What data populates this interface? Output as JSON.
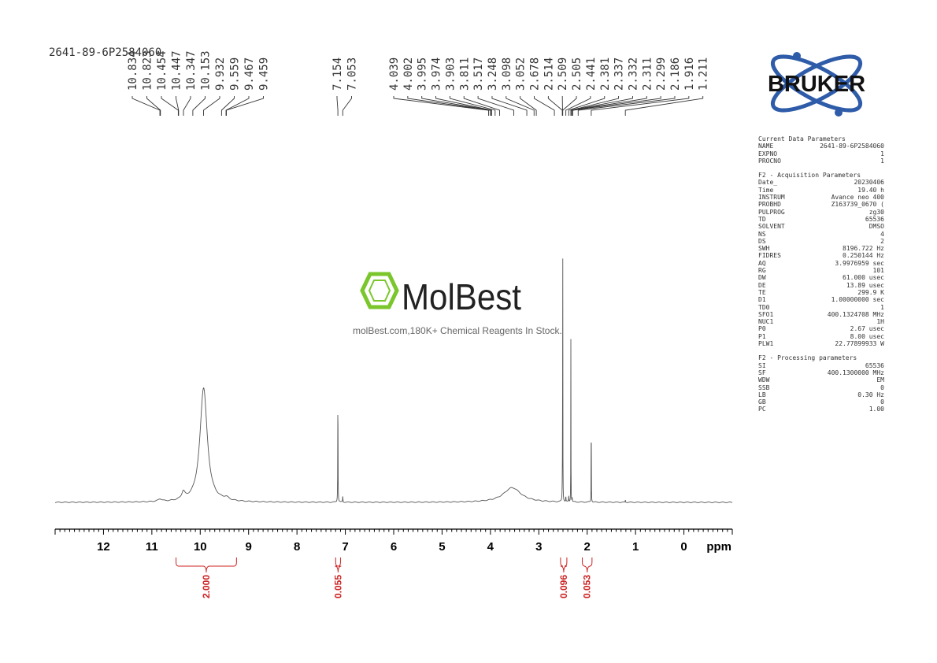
{
  "sample_title": "2641-89-6P2584060",
  "logo": {
    "brand": "BRUKER",
    "watermark_name": "MolBest",
    "watermark_caption": "molBest.com,180K+ Chemical Reagents In Stock."
  },
  "parameters": {
    "current": {
      "title": "Current Data Parameters",
      "rows": [
        {
          "k": "NAME",
          "v": "2641-89-6P2584060"
        },
        {
          "k": "EXPNO",
          "v": "1"
        },
        {
          "k": "PROCNO",
          "v": "1"
        }
      ]
    },
    "acquisition": {
      "title": "F2 - Acquisition Parameters",
      "rows": [
        {
          "k": "Date_",
          "v": "20230406"
        },
        {
          "k": "Time",
          "v": "19.40 h"
        },
        {
          "k": "INSTRUM",
          "v": "Avance neo 400"
        },
        {
          "k": "PROBHD",
          "v": "Z163739_0670 ("
        },
        {
          "k": "PULPROG",
          "v": "zg30"
        },
        {
          "k": "TD",
          "v": "65536"
        },
        {
          "k": "SOLVENT",
          "v": "DMSO"
        },
        {
          "k": "NS",
          "v": "4"
        },
        {
          "k": "DS",
          "v": "2"
        },
        {
          "k": "SWH",
          "v": "8196.722 Hz"
        },
        {
          "k": "FIDRES",
          "v": "0.250144 Hz"
        },
        {
          "k": "AQ",
          "v": "3.9976959 sec"
        },
        {
          "k": "RG",
          "v": "101"
        },
        {
          "k": "DW",
          "v": "61.000 usec"
        },
        {
          "k": "DE",
          "v": "13.89 usec"
        },
        {
          "k": "TE",
          "v": "299.9 K"
        },
        {
          "k": "D1",
          "v": "1.00000000 sec"
        },
        {
          "k": "TD0",
          "v": "1"
        },
        {
          "k": "SFO1",
          "v": "400.1324708 MHz"
        },
        {
          "k": "NUC1",
          "v": "1H"
        },
        {
          "k": "P0",
          "v": "2.67 usec"
        },
        {
          "k": "P1",
          "v": "8.00 usec"
        },
        {
          "k": "PLW1",
          "v": "22.77899933 W"
        }
      ]
    },
    "processing": {
      "title": "F2 - Processing parameters",
      "rows": [
        {
          "k": "SI",
          "v": "65536"
        },
        {
          "k": "SF",
          "v": "400.1300000 MHz"
        },
        {
          "k": "WDW",
          "v": "EM"
        },
        {
          "k": "SSB",
          "v": "0"
        },
        {
          "k": "LB",
          "v": "0.30 Hz"
        },
        {
          "k": "GB",
          "v": "0"
        },
        {
          "k": "PC",
          "v": "1.00"
        }
      ]
    }
  },
  "chart_data": {
    "type": "line",
    "xlabel": "ppm",
    "xlim": [
      13,
      -1
    ],
    "reversed_x": true,
    "x_ticks": [
      12,
      11,
      10,
      9,
      8,
      7,
      6,
      5,
      4,
      3,
      2,
      1,
      0
    ],
    "peaks": [
      {
        "ppm": 10.83,
        "height": 0.02,
        "width": 0.05
      },
      {
        "ppm": 10.35,
        "height": 0.06,
        "width": 0.04
      },
      {
        "ppm": 9.93,
        "height": 0.94,
        "width": 0.09
      },
      {
        "ppm": 9.46,
        "height": 0.02,
        "width": 0.06
      },
      {
        "ppm": 7.154,
        "height": 0.98,
        "width": 0.003
      },
      {
        "ppm": 7.053,
        "height": 0.05,
        "width": 0.004
      },
      {
        "ppm": 3.55,
        "height": 0.12,
        "width": 0.22
      },
      {
        "ppm": 2.514,
        "height": 0.1,
        "width": 0.003
      },
      {
        "ppm": 2.509,
        "height": 0.26,
        "width": 0.003
      },
      {
        "ppm": 2.505,
        "height": 2.33,
        "width": 0.002
      },
      {
        "ppm": 2.441,
        "height": 0.05,
        "width": 0.003
      },
      {
        "ppm": 2.381,
        "height": 0.05,
        "width": 0.003
      },
      {
        "ppm": 2.337,
        "height": 1.35,
        "width": 0.002
      },
      {
        "ppm": 2.311,
        "height": 0.04,
        "width": 0.003
      },
      {
        "ppm": 1.916,
        "height": 0.99,
        "width": 0.002
      },
      {
        "ppm": 1.211,
        "height": 0.02,
        "width": 0.003
      }
    ],
    "peak_labels": [
      {
        "label": "10.834",
        "ppm": 10.834
      },
      {
        "label": "10.823",
        "ppm": 10.823
      },
      {
        "label": "10.454",
        "ppm": 10.454
      },
      {
        "label": "10.447",
        "ppm": 10.447
      },
      {
        "label": "10.347",
        "ppm": 10.347
      },
      {
        "label": "10.153",
        "ppm": 10.153
      },
      {
        "label": "9.932",
        "ppm": 9.932
      },
      {
        "label": "9.559",
        "ppm": 9.559
      },
      {
        "label": "9.467",
        "ppm": 9.467
      },
      {
        "label": "9.459",
        "ppm": 9.459
      },
      {
        "label": "7.154",
        "ppm": 7.154
      },
      {
        "label": "7.053",
        "ppm": 7.053
      },
      {
        "label": "4.039",
        "ppm": 4.039
      },
      {
        "label": "4.002",
        "ppm": 4.002
      },
      {
        "label": "3.995",
        "ppm": 3.995
      },
      {
        "label": "3.974",
        "ppm": 3.974
      },
      {
        "label": "3.903",
        "ppm": 3.903
      },
      {
        "label": "3.811",
        "ppm": 3.811
      },
      {
        "label": "3.517",
        "ppm": 3.517
      },
      {
        "label": "3.248",
        "ppm": 3.248
      },
      {
        "label": "3.098",
        "ppm": 3.098
      },
      {
        "label": "3.052",
        "ppm": 3.052
      },
      {
        "label": "2.678",
        "ppm": 2.678
      },
      {
        "label": "2.514",
        "ppm": 2.514
      },
      {
        "label": "2.509",
        "ppm": 2.509
      },
      {
        "label": "2.505",
        "ppm": 2.505
      },
      {
        "label": "2.441",
        "ppm": 2.441
      },
      {
        "label": "2.381",
        "ppm": 2.381
      },
      {
        "label": "2.337",
        "ppm": 2.337
      },
      {
        "label": "2.332",
        "ppm": 2.332
      },
      {
        "label": "2.311",
        "ppm": 2.311
      },
      {
        "label": "2.299",
        "ppm": 2.299
      },
      {
        "label": "2.186",
        "ppm": 2.186
      },
      {
        "label": "1.916",
        "ppm": 1.916
      },
      {
        "label": "1.211",
        "ppm": 1.211
      }
    ],
    "integrals": [
      {
        "from": 10.5,
        "to": 9.25,
        "value": "2.000"
      },
      {
        "from": 7.2,
        "to": 7.1,
        "value": "0.055"
      },
      {
        "from": 2.55,
        "to": 2.42,
        "value": "0.096"
      },
      {
        "from": 2.1,
        "to": 1.9,
        "value": "0.053"
      }
    ],
    "colors": {
      "spectrum": "#555555",
      "integral": "#cc2222",
      "axis": "#000000",
      "watermark_green": "#7bc62d"
    }
  }
}
